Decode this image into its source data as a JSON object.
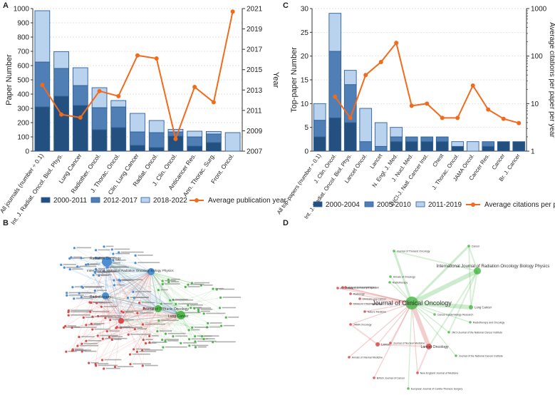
{
  "panel_labels": {
    "a": "A",
    "b": "B",
    "c": "C",
    "d": "D"
  },
  "colors": {
    "dark": "#24507f",
    "mid": "#4f7fb5",
    "light": "#b9d2ee",
    "edge": "#2f5f9a",
    "orange": "#f26b1d",
    "netBlue": "#4a8fd4",
    "netGreen": "#4db84b",
    "netRed": "#d94a4a"
  },
  "chart_data": [
    {
      "id": "A",
      "type": "bar",
      "stacked": true,
      "ylabel": "Paper Number",
      "y2label": "Year",
      "ylim": [
        0,
        1000
      ],
      "y2lim": [
        2007,
        2021
      ],
      "yticks": [
        0,
        100,
        200,
        300,
        400,
        500,
        600,
        700,
        800,
        900,
        1000
      ],
      "y2ticks": [
        2007,
        2009,
        2011,
        2013,
        2015,
        2017,
        2019,
        2021
      ],
      "categories": [
        "All journals (number ÷ 0.1)",
        "Int. J. Radiat. Oncol. Biol. Phys.",
        "Lung Cancer",
        "Radiother. Oncol.",
        "J. Thorac. Oncol.",
        "Clin. Lung Cancer",
        "Radiat. Oncol.",
        "J. Clin. Oncol.",
        "Anticancer Res.",
        "Ann. Thorac. Surg.",
        "Front. Oncol."
      ],
      "series": [
        {
          "name": "2000-2011",
          "values": [
            310,
            385,
            320,
            150,
            165,
            40,
            25,
            105,
            35,
            60,
            0
          ]
        },
        {
          "name": "2012-2017",
          "values": [
            315,
            195,
            140,
            155,
            145,
            95,
            105,
            30,
            65,
            60,
            0
          ]
        },
        {
          "name": "2018-2022",
          "values": [
            360,
            118,
            125,
            140,
            45,
            130,
            85,
            18,
            40,
            18,
            130
          ]
        }
      ],
      "line": {
        "name": "Average publication year",
        "values": [
          2013.5,
          2010.6,
          2010.3,
          2012.9,
          2012.4,
          2016.4,
          2016.1,
          2008.2,
          2013.3,
          2011.8,
          2020.7
        ]
      },
      "legend": [
        "2000-2011",
        "2012-2017",
        "2018-2022",
        "Average publication year"
      ]
    },
    {
      "id": "C",
      "type": "bar",
      "stacked": true,
      "ylabel": "Top-paper Number",
      "y2label": "Average citations per paper per year",
      "ylim": [
        0,
        30
      ],
      "y2lim": [
        1,
        1000
      ],
      "y2scale": "log",
      "yticks": [
        0,
        5,
        10,
        15,
        20,
        25,
        30
      ],
      "y2ticks": [
        1,
        10,
        100,
        1000
      ],
      "categories": [
        "All top-papers (number ÷ 0.1)",
        "J. Clin. Oncol.",
        "Int. J. Radiat. Oncol. Biol. Phys.",
        "Lancet Oncol.",
        "Lancet",
        "N. Engl. J. Med.",
        "J. Nucl. Med.",
        "JNCI-J. Natl. Cancer Inst.",
        "Chest",
        "J. Thorac. Oncol.",
        "JAMA Oncol.",
        "Cancer Res.",
        "Cancer",
        "Br. J. Cancer"
      ],
      "series": [
        {
          "name": "2000-2004",
          "values": [
            3,
            7,
            6,
            0,
            0,
            2,
            2,
            2,
            2,
            1,
            0,
            1,
            2,
            2
          ]
        },
        {
          "name": "2005-2010",
          "values": [
            3.5,
            14,
            8,
            2,
            1,
            1,
            1,
            1,
            1,
            0,
            0,
            1,
            0,
            0
          ]
        },
        {
          "name": "2011-2019",
          "values": [
            3.5,
            8,
            3,
            7,
            5,
            2,
            0,
            0,
            0,
            1,
            2,
            0,
            0,
            0
          ]
        }
      ],
      "line": {
        "name": "Average citations per paper per year",
        "values": [
          null,
          14,
          5,
          40,
          75,
          190,
          9,
          10,
          5,
          5,
          24,
          7.5,
          4.8,
          3.9
        ]
      },
      "legend": [
        "2000-2004",
        "2005-2010",
        "2011-2019",
        "Average citations per paper per year"
      ]
    }
  ],
  "network_b": {
    "hubs": [
      "Radiation Oncology",
      "International Journal of Radiation Oncology Biology Physics",
      "Radiotherapy",
      "Journal of Thoracic Oncology",
      "Lung Cancer"
    ]
  },
  "network_d": {
    "labels": [
      "Journal of Thoracic Oncology",
      "Cancer",
      "Annals of Oncology",
      "Radiotherapy",
      "International Journal of Radiation Oncology Biology Physics",
      "Annals of Internal Medicine",
      "Pneumonie",
      "American Family Physician",
      "Radiology",
      "Clinical Lung Cancer",
      "Clinics in Chest Medicine",
      "Journal of Clinical Oncology",
      "Lung Cancer",
      "Nature Medicine",
      "Cancer Epidemiology Research",
      "Radiotherapy and Oncology",
      "JAMA Oncology",
      "JNCI-Journal of the National Cancer Institute",
      "Journal of Nuclear Medicine",
      "Lancet Oncology",
      "Lancet",
      "Annals of Internal Medicine",
      "Journal of the National Cancer Institute",
      "New England Journal of Medicine",
      "British Journal of Cancer",
      "European Journal of Cardio-Thoracic Surgery"
    ]
  }
}
